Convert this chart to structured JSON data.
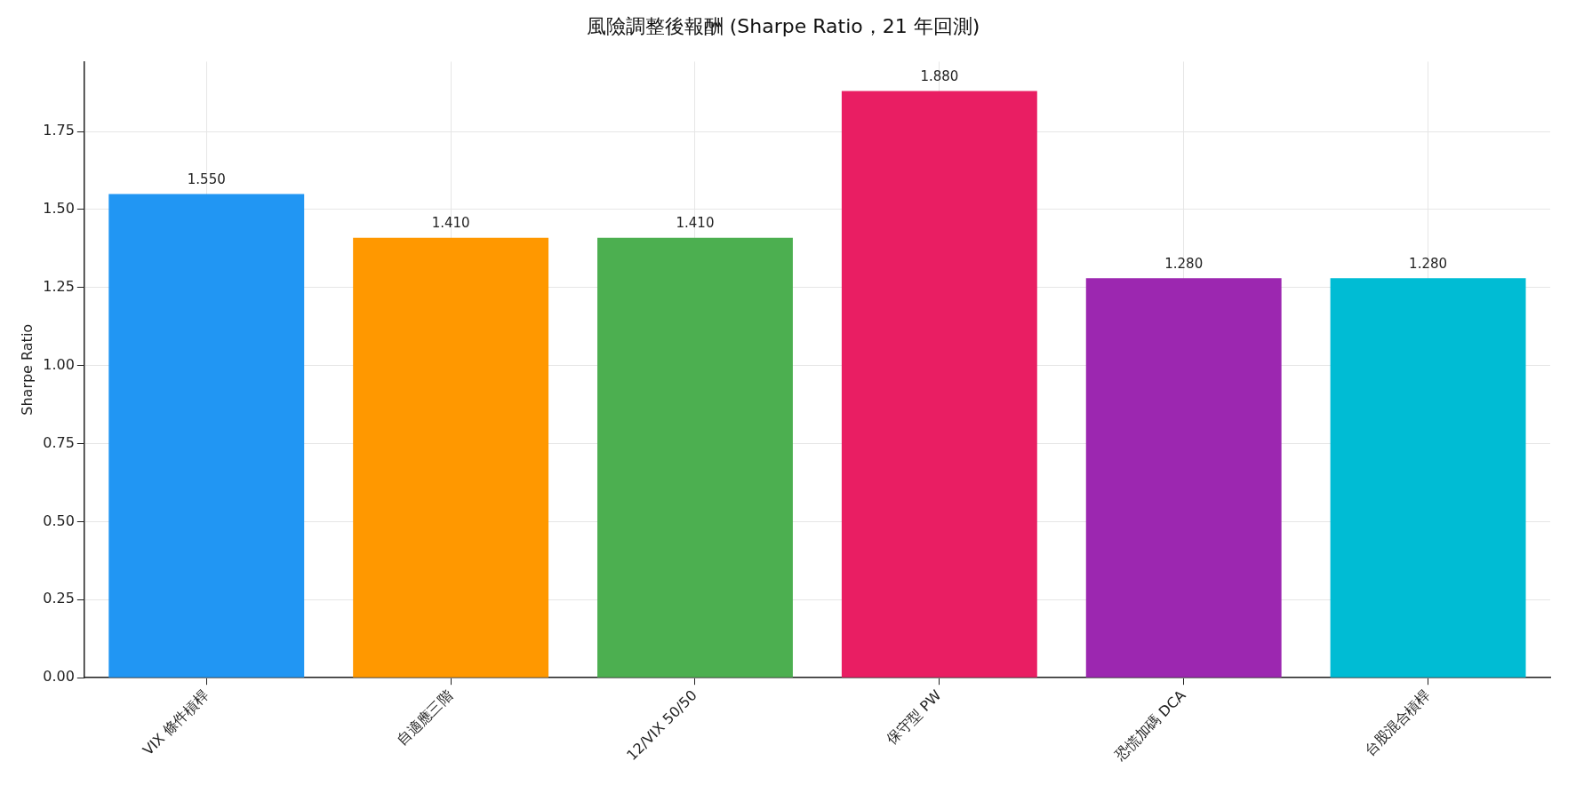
{
  "chart_data": {
    "type": "bar",
    "title": "風險調整後報酬 (Sharpe Ratio，21 年回測)",
    "ylabel": "Sharpe Ratio",
    "categories": [
      "VIX 條件槓桿",
      "自適應三階",
      "12/VIX 50/50",
      "保守型 PW",
      "恐慌加碼 DCA",
      "台股混合槓桿"
    ],
    "values": [
      1.55,
      1.41,
      1.41,
      1.88,
      1.28,
      1.28
    ],
    "colors": [
      "#2196f3",
      "#ff9800",
      "#4caf50",
      "#e91e63",
      "#9c27b0",
      "#00bcd4"
    ],
    "value_labels": [
      "1.550",
      "1.410",
      "1.410",
      "1.880",
      "1.280",
      "1.280"
    ],
    "ylim": [
      0,
      1.974
    ],
    "yticks": [
      {
        "value": 0,
        "label": "0.00"
      },
      {
        "value": 0.25,
        "label": "0.25"
      },
      {
        "value": 0.5,
        "label": "0.50"
      },
      {
        "value": 0.75,
        "label": "0.75"
      },
      {
        "value": 1,
        "label": "1.00"
      },
      {
        "value": 1.25,
        "label": "1.25"
      },
      {
        "value": 1.5,
        "label": "1.50"
      },
      {
        "value": 1.75,
        "label": "1.75"
      }
    ],
    "grid": true
  }
}
